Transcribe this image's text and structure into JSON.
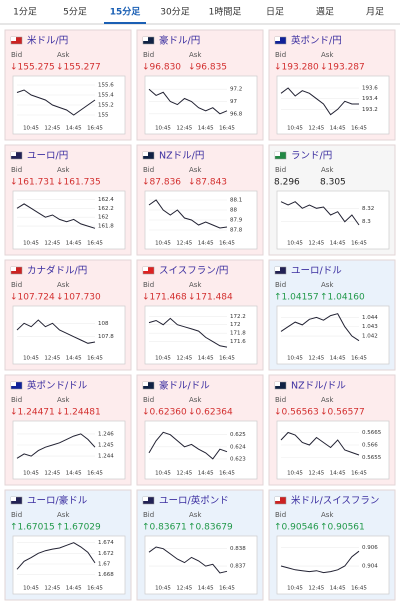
{
  "tabs": [
    "1分足",
    "5分足",
    "15分足",
    "30分足",
    "1時間足",
    "日足",
    "週足",
    "月足"
  ],
  "active_tab_index": 2,
  "bid_label": "Bid",
  "ask_label": "Ask",
  "time_labels": [
    "10:45",
    "12:45",
    "14:45",
    "16:45"
  ],
  "panels": [
    {
      "name": "米ドル/円",
      "bid": "↓155.275",
      "ask": "↓155.277",
      "trend": "down",
      "ylim": [
        154.9,
        155.7
      ],
      "yticks": [
        155.6,
        155.4,
        155.2,
        155
      ],
      "values": [
        155.45,
        155.5,
        155.4,
        155.35,
        155.3,
        155.2,
        155.15,
        155.1,
        155.0,
        155.1,
        155.2,
        155.3
      ]
    },
    {
      "name": "豪ドル/円",
      "bid": "↓96.830",
      "ask": "↓96.835",
      "trend": "down",
      "ylim": [
        96.7,
        97.35
      ],
      "yticks": [
        97.2,
        97,
        96.8
      ],
      "values": [
        97.2,
        97.1,
        97.15,
        97.0,
        96.95,
        97.05,
        97.0,
        96.9,
        96.85,
        96.9,
        96.8,
        96.85
      ]
    },
    {
      "name": "英ポンド/円",
      "bid": "↓193.280",
      "ask": "↓193.287",
      "trend": "down",
      "ylim": [
        193.0,
        193.75
      ],
      "yticks": [
        193.6,
        193.4,
        193.2
      ],
      "values": [
        193.5,
        193.6,
        193.45,
        193.55,
        193.5,
        193.4,
        193.3,
        193.1,
        193.2,
        193.35,
        193.3,
        193.3
      ]
    },
    {
      "name": "ユーロ/円",
      "bid": "↓161.731",
      "ask": "↓161.735",
      "trend": "down",
      "ylim": [
        161.6,
        162.5
      ],
      "yticks": [
        162.4,
        162.2,
        162,
        161.8
      ],
      "values": [
        162.2,
        162.3,
        162.2,
        162.1,
        162.0,
        162.05,
        161.95,
        161.9,
        161.95,
        161.85,
        161.8,
        161.75
      ]
    },
    {
      "name": "NZドル/円",
      "bid": "↓87.836",
      "ask": "↓87.843",
      "trend": "down",
      "ylim": [
        87.75,
        88.15
      ],
      "yticks": [
        88.1,
        88,
        87.9,
        87.8
      ],
      "values": [
        88.05,
        88.1,
        88.0,
        87.95,
        88.0,
        87.92,
        87.9,
        87.85,
        87.88,
        87.85,
        87.82,
        87.83
      ]
    },
    {
      "name": "ランド/円",
      "bid": "8.296",
      "ask": "8.305",
      "trend": "flat",
      "ylim": [
        8.28,
        8.34
      ],
      "yticks": [
        8.32,
        8.3
      ],
      "values": [
        8.33,
        8.325,
        8.33,
        8.32,
        8.325,
        8.32,
        8.322,
        8.31,
        8.315,
        8.3,
        8.31,
        8.295
      ]
    },
    {
      "name": "カナダドル/円",
      "bid": "↓107.724",
      "ask": "↓107.730",
      "trend": "down",
      "ylim": [
        107.6,
        108.2
      ],
      "yticks": [
        108,
        107.8
      ],
      "values": [
        107.9,
        108.0,
        107.95,
        108.05,
        107.95,
        108.0,
        107.9,
        107.85,
        107.8,
        107.75,
        107.7,
        107.72
      ]
    },
    {
      "name": "スイスフラン/円",
      "bid": "↓171.468",
      "ask": "↓171.484",
      "trend": "down",
      "ylim": [
        171.4,
        172.35
      ],
      "yticks": [
        172.2,
        172,
        171.8,
        171.6
      ],
      "values": [
        172.05,
        172.1,
        172.0,
        172.15,
        172.0,
        171.95,
        171.9,
        171.85,
        171.7,
        171.6,
        171.5,
        171.47
      ]
    },
    {
      "name": "ユーロ/ドル",
      "bid": "↑1.04157",
      "ask": "↑1.04160",
      "trend": "up",
      "ylim": [
        1.0405,
        1.0448
      ],
      "yticks": [
        1.044,
        1.043,
        1.042
      ],
      "values": [
        1.0425,
        1.043,
        1.0435,
        1.0432,
        1.0438,
        1.044,
        1.0437,
        1.0442,
        1.0444,
        1.043,
        1.042,
        1.0415
      ]
    },
    {
      "name": "英ポンド/ドル",
      "bid": "↓1.24471",
      "ask": "↓1.24481",
      "trend": "down",
      "ylim": [
        1.2432,
        1.2468
      ],
      "yticks": [
        1.246,
        1.245,
        1.244
      ],
      "values": [
        1.2438,
        1.2442,
        1.244,
        1.2445,
        1.2448,
        1.245,
        1.2452,
        1.2455,
        1.2458,
        1.246,
        1.2455,
        1.2448
      ]
    },
    {
      "name": "豪ドル/ドル",
      "bid": "↓0.62360",
      "ask": "↓0.62364",
      "trend": "down",
      "ylim": [
        0.6225,
        0.6258
      ],
      "yticks": [
        0.625,
        0.624,
        0.623
      ],
      "values": [
        0.6235,
        0.6245,
        0.6252,
        0.625,
        0.6245,
        0.624,
        0.6242,
        0.6238,
        0.6235,
        0.623,
        0.6238,
        0.6236
      ]
    },
    {
      "name": "NZドル/ドル",
      "bid": "↓0.56563",
      "ask": "↓0.56577",
      "trend": "down",
      "ylim": [
        0.5652,
        0.5668
      ],
      "yticks": [
        0.5665,
        0.566,
        0.5655
      ],
      "values": [
        0.5662,
        0.5665,
        0.5664,
        0.5661,
        0.566,
        0.5663,
        0.5661,
        0.5659,
        0.5662,
        0.5658,
        0.5657,
        0.5656
      ]
    },
    {
      "name": "ユーロ/豪ドル",
      "bid": "↑1.67015",
      "ask": "↑1.67029",
      "trend": "up",
      "ylim": [
        1.667,
        1.6745
      ],
      "yticks": [
        1.674,
        1.672,
        1.67,
        1.668
      ],
      "values": [
        1.669,
        1.6705,
        1.6712,
        1.672,
        1.6725,
        1.6728,
        1.673,
        1.6735,
        1.674,
        1.6732,
        1.6722,
        1.6702
      ]
    },
    {
      "name": "ユーロ/英ポンド",
      "bid": "↑0.83671",
      "ask": "↑0.83679",
      "trend": "up",
      "ylim": [
        0.8362,
        0.8385
      ],
      "yticks": [
        0.838,
        0.837
      ],
      "values": [
        0.8378,
        0.8381,
        0.838,
        0.8377,
        0.8374,
        0.8372,
        0.8375,
        0.8373,
        0.837,
        0.8371,
        0.8366,
        0.8367
      ]
    },
    {
      "name": "米ドル/スイスフラン",
      "bid": "↑0.90546",
      "ask": "↑0.90561",
      "trend": "up",
      "ylim": [
        0.9025,
        0.9068
      ],
      "yticks": [
        0.906,
        0.904
      ],
      "values": [
        0.904,
        0.9038,
        0.9036,
        0.9035,
        0.9034,
        0.9035,
        0.9033,
        0.9034,
        0.9036,
        0.904,
        0.905,
        0.9056
      ]
    }
  ]
}
